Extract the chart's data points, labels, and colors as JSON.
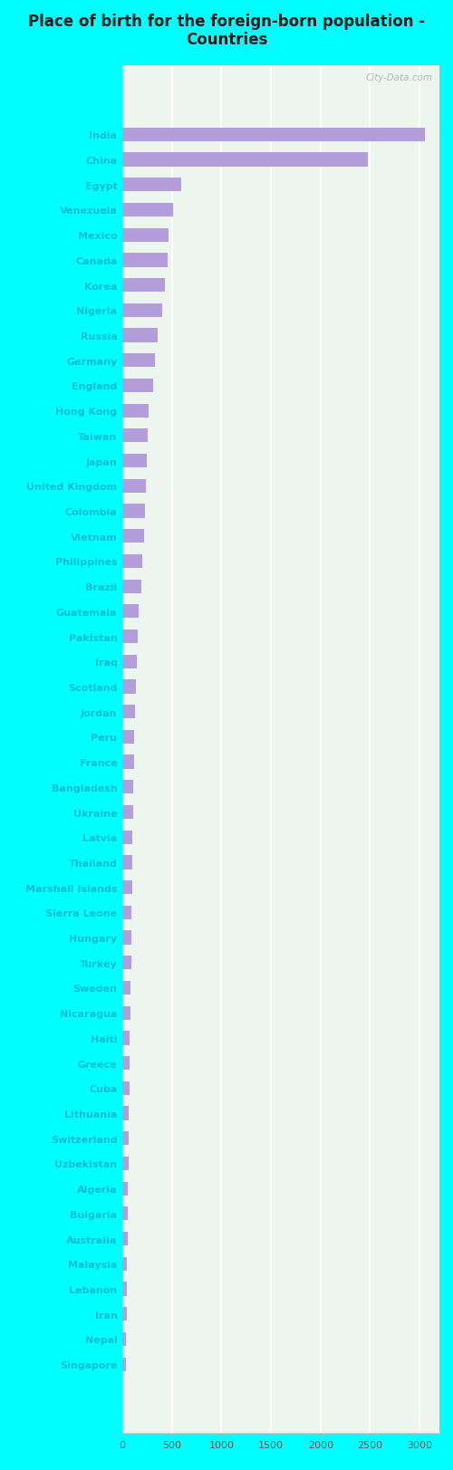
{
  "title": "Place of birth for the foreign-born population -\nCountries",
  "categories": [
    "India",
    "China",
    "Egypt",
    "Venezuela",
    "Mexico",
    "Canada",
    "Korea",
    "Nigeria",
    "Russia",
    "Germany",
    "England",
    "Hong Kong",
    "Taiwan",
    "Japan",
    "United Kingdom",
    "Colombia",
    "Vietnam",
    "Philippines",
    "Brazil",
    "Guatemala",
    "Pakistan",
    "Iraq",
    "Scotland",
    "Jordan",
    "Peru",
    "France",
    "Bangladesh",
    "Ukraine",
    "Latvia",
    "Thailand",
    "Marshall Islands",
    "Sierra Leone",
    "Hungary",
    "Turkey",
    "Sweden",
    "Nicaragua",
    "Haiti",
    "Greece",
    "Cuba",
    "Lithuania",
    "Switzerland",
    "Uzbekistan",
    "Algeria",
    "Bulgaria",
    "Australia",
    "Malaysia",
    "Lebanon",
    "Iran",
    "Nepal",
    "Singapore"
  ],
  "values": [
    3050,
    2480,
    590,
    510,
    470,
    460,
    430,
    400,
    360,
    325,
    315,
    265,
    255,
    245,
    235,
    225,
    215,
    200,
    190,
    165,
    155,
    142,
    137,
    128,
    123,
    118,
    113,
    108,
    103,
    100,
    97,
    93,
    90,
    87,
    83,
    80,
    77,
    73,
    70,
    67,
    64,
    61,
    58,
    55,
    52,
    50,
    47,
    44,
    41,
    38
  ],
  "bar_color": "#b39ddb",
  "cyan_bg": "#00ffff",
  "plot_bg": "#edf5ef",
  "title_color": "#1a1a1a",
  "label_color": "#00bcd4",
  "tick_color": "#555555",
  "xlim": [
    0,
    3200
  ],
  "xticks": [
    0,
    500,
    1000,
    1500,
    2000,
    2500,
    3000
  ],
  "watermark": "City-Data.com",
  "title_fontsize": 12,
  "label_fontsize": 8,
  "tick_fontsize": 8
}
